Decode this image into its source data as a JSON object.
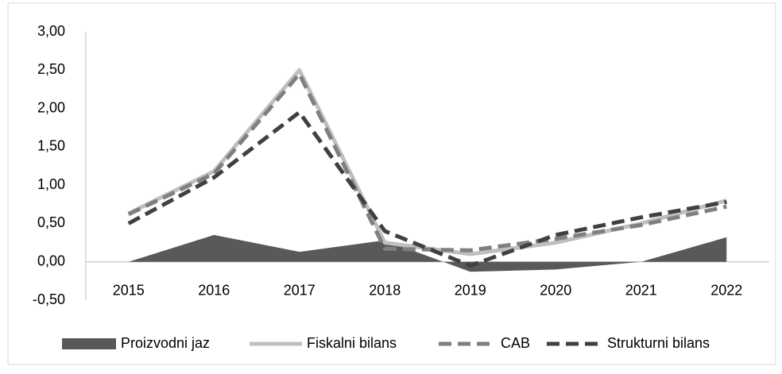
{
  "chart_data": {
    "type": "line",
    "categories": [
      "2015",
      "2016",
      "2017",
      "2018",
      "2019",
      "2020",
      "2021",
      "2022"
    ],
    "series": [
      {
        "name": "Proizvodni jaz",
        "kind": "area",
        "color": "#595959",
        "values": [
          0,
          0.35,
          0.13,
          0.28,
          -0.13,
          -0.1,
          0,
          0.32
        ]
      },
      {
        "name": "Fiskalni bilans",
        "kind": "line",
        "color": "#bfbfbf",
        "values": [
          0.63,
          1.18,
          2.5,
          0.25,
          0.1,
          0.25,
          0.5,
          0.8
        ]
      },
      {
        "name": "CAB",
        "kind": "dashed",
        "color": "#7f7f7f",
        "values": [
          0.62,
          1.15,
          2.45,
          0.17,
          0.15,
          0.3,
          0.48,
          0.72
        ]
      },
      {
        "name": "Strukturni bilans",
        "kind": "dashed",
        "color": "#404040",
        "values": [
          0.5,
          1.1,
          1.95,
          0.4,
          -0.05,
          0.35,
          0.58,
          0.78
        ]
      }
    ],
    "ylim": [
      -0.5,
      3
    ],
    "yticks": [
      {
        "value": -0.5,
        "label": "-0,50"
      },
      {
        "value": 0,
        "label": "0,00"
      },
      {
        "value": 0.5,
        "label": "0,50"
      },
      {
        "value": 1,
        "label": "1,00"
      },
      {
        "value": 1.5,
        "label": "1,50"
      },
      {
        "value": 2,
        "label": "2,00"
      },
      {
        "value": 2.5,
        "label": "2,50"
      },
      {
        "value": 3,
        "label": "3,00"
      }
    ],
    "legend": "bottom"
  }
}
